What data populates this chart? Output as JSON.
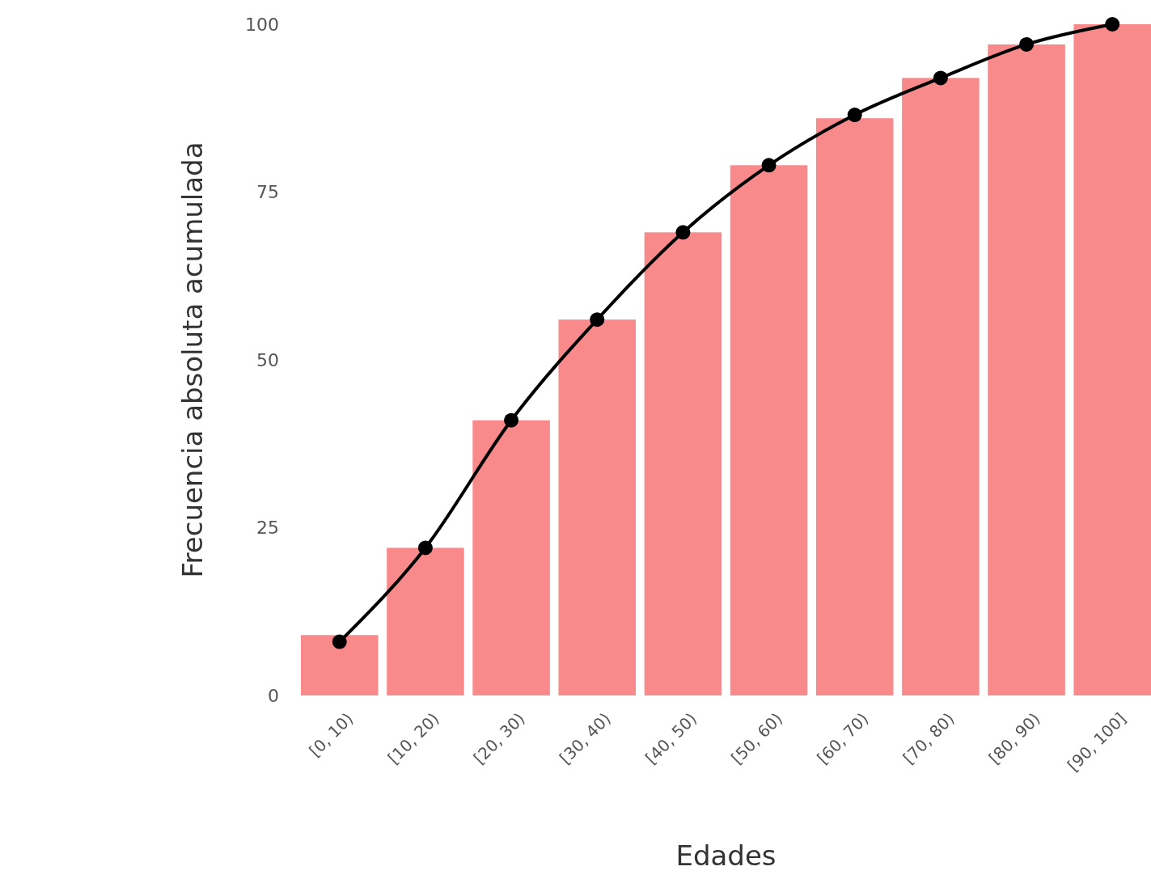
{
  "chart_data": {
    "type": "bar",
    "xlabel": "Edades",
    "ylabel": "Frecuencia absoluta acumulada",
    "categories": [
      "[0, 10)",
      "[10, 20)",
      "[20, 30)",
      "[30, 40)",
      "[40, 50)",
      "[50, 60)",
      "[60, 70)",
      "[70, 80)",
      "[80, 90)",
      "[90, 100]"
    ],
    "series": [
      {
        "color": "#f88a8c",
        "values": [
          9,
          22,
          41,
          56,
          69,
          79,
          86,
          92,
          97,
          100
        ]
      },
      {
        "type": "line",
        "color": "#000000",
        "values": [
          8,
          22,
          41,
          56,
          69,
          79,
          86.5,
          92,
          97,
          100
        ]
      }
    ],
    "ylim": [
      0,
      100
    ],
    "yticks": [
      0,
      25,
      50,
      75,
      100
    ],
    "grid": false,
    "marker": "circle",
    "line_style": "solid"
  }
}
